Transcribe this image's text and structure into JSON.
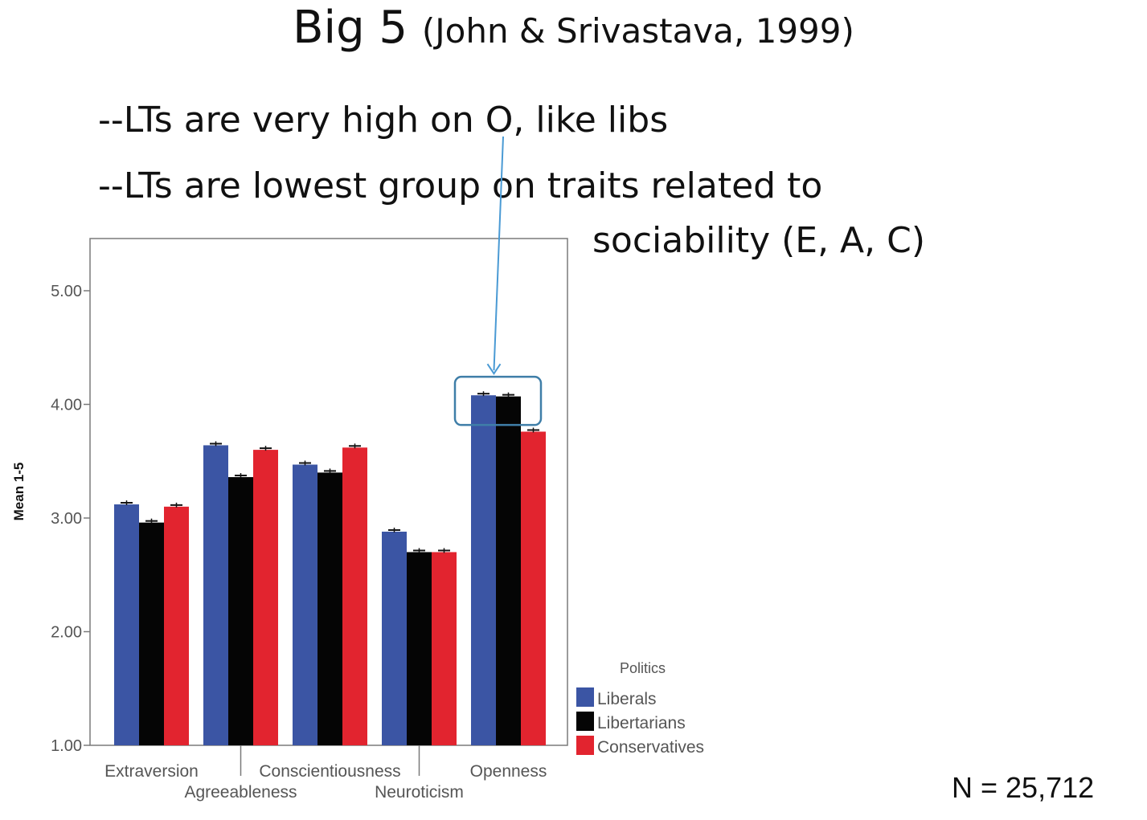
{
  "title": {
    "main": "Big 5",
    "citation": "(John & Srivastava, 1999)"
  },
  "bullets": [
    "--LTs are very high on O, like libs",
    "--LTs are lowest group on traits related to",
    "sociability (E, A, C)"
  ],
  "sample_size": "N = 25,712",
  "chart_data": {
    "type": "bar",
    "title": "",
    "xlabel": "",
    "ylabel": "Mean 1-5",
    "ylim": [
      1,
      5.45
    ],
    "yticks": [
      1,
      2,
      3,
      4,
      5
    ],
    "ytick_labels": [
      "1.00",
      "2.00",
      "3.00",
      "4.00",
      "5.00"
    ],
    "categories": [
      "Extraversion",
      "Agreeableness",
      "Conscientiousness",
      "Neuroticism",
      "Openness"
    ],
    "legend_title": "Politics",
    "legend_position": "right",
    "series": [
      {
        "name": "Liberals",
        "color": "#3b55a4",
        "values": [
          3.12,
          3.64,
          3.47,
          2.88,
          4.08
        ]
      },
      {
        "name": "Libertarians",
        "color": "#050505",
        "values": [
          2.96,
          3.36,
          3.4,
          2.7,
          4.07
        ]
      },
      {
        "name": "Conservatives",
        "color": "#e2242f",
        "values": [
          3.1,
          3.6,
          3.62,
          2.7,
          3.76
        ]
      }
    ],
    "error_bars": true,
    "annotation": {
      "text": "LTs Openness highlighted",
      "category": "Openness",
      "series": [
        "Liberals",
        "Libertarians"
      ],
      "color": "#4a9ad4"
    }
  }
}
